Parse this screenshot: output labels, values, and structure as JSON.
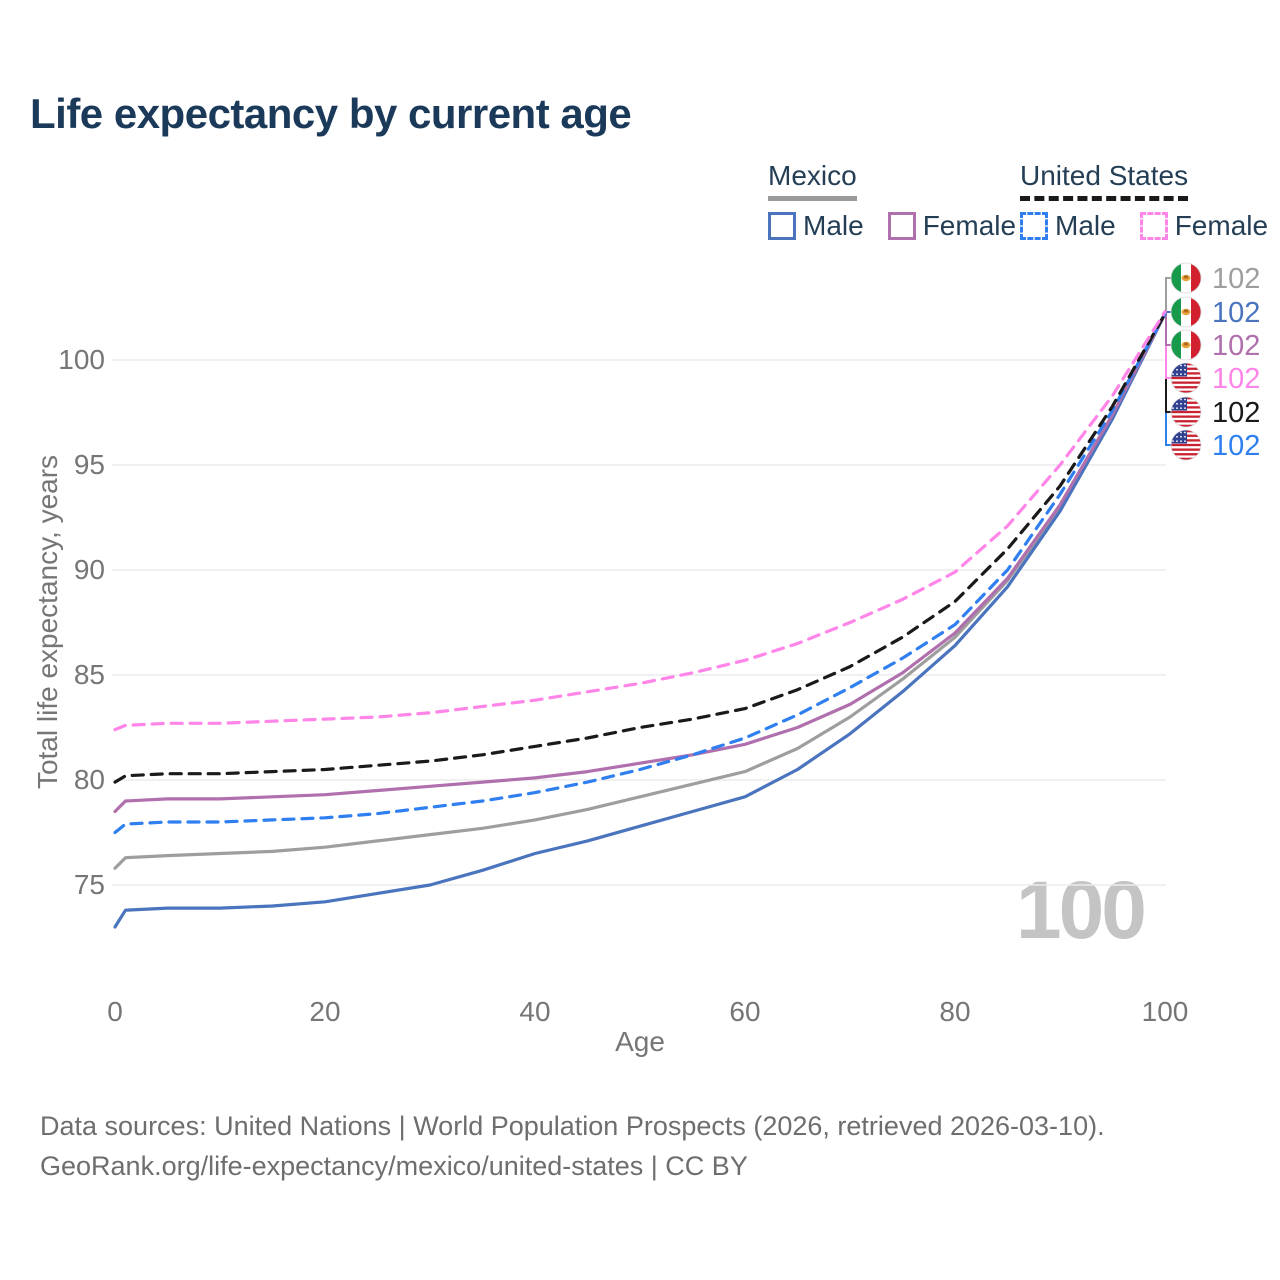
{
  "header": {
    "title": "Life expectancy by current age"
  },
  "legend": {
    "groups": [
      {
        "label": "Mexico",
        "line_style": "solid",
        "underline_color": "#9a9a9a",
        "items": [
          {
            "label": "Male",
            "color": "#4a74bd"
          },
          {
            "label": "Female",
            "color": "#b06fad"
          }
        ]
      },
      {
        "label": "United States",
        "line_style": "dashed",
        "underline_color": "#1a1a1a",
        "items": [
          {
            "label": "Male",
            "color": "#2f7ff0"
          },
          {
            "label": "Female",
            "color": "#ff85e8"
          }
        ]
      }
    ]
  },
  "chart_data": {
    "type": "line",
    "title": "Life expectancy by current age",
    "xlabel": "Age",
    "ylabel": "Total life expectancy, years",
    "x_ticks": [
      0,
      20,
      40,
      60,
      80,
      100
    ],
    "y_ticks": [
      75,
      80,
      85,
      90,
      95,
      100
    ],
    "xlim": [
      0,
      100
    ],
    "ylim": [
      72,
      103
    ],
    "grid": "horizontal-only",
    "legend_position": "top-right",
    "age_indicator": "100",
    "ages": [
      0,
      1,
      5,
      10,
      15,
      20,
      25,
      30,
      35,
      40,
      45,
      50,
      55,
      60,
      65,
      70,
      75,
      80,
      85,
      90,
      95,
      100
    ],
    "series": [
      {
        "name": "Mexico Both sexes",
        "country": "Mexico",
        "sex": "Both",
        "style": "solid",
        "color": "#9e9e9e",
        "flag": "mx",
        "slot": 0,
        "end_label": "102",
        "values": [
          75.8,
          76.3,
          76.4,
          76.5,
          76.6,
          76.8,
          77.1,
          77.4,
          77.7,
          78.1,
          78.6,
          79.2,
          79.8,
          80.4,
          81.5,
          83.0,
          84.8,
          86.8,
          89.5,
          93.0,
          97.3,
          102.2
        ]
      },
      {
        "name": "Mexico Male",
        "country": "Mexico",
        "sex": "Male",
        "style": "solid",
        "color": "#4a74bd",
        "flag": "mx",
        "slot": 1,
        "end_label": "102",
        "values": [
          73.0,
          73.8,
          73.9,
          73.9,
          74.0,
          74.2,
          74.6,
          75.0,
          75.7,
          76.5,
          77.1,
          77.8,
          78.5,
          79.2,
          80.5,
          82.2,
          84.2,
          86.4,
          89.2,
          92.8,
          97.2,
          102.2
        ]
      },
      {
        "name": "Mexico Female",
        "country": "Mexico",
        "sex": "Female",
        "style": "solid",
        "color": "#b06fad",
        "flag": "mx",
        "slot": 2,
        "end_label": "102",
        "values": [
          78.5,
          79.0,
          79.1,
          79.1,
          79.2,
          79.3,
          79.5,
          79.7,
          79.9,
          80.1,
          80.4,
          80.8,
          81.2,
          81.7,
          82.5,
          83.6,
          85.1,
          87.0,
          89.6,
          93.1,
          97.4,
          102.2
        ]
      },
      {
        "name": "United States Male",
        "country": "United States",
        "sex": "Male",
        "style": "dashed",
        "color": "#2f7ff0",
        "flag": "us",
        "slot": 5,
        "end_label": "102",
        "values": [
          77.5,
          77.9,
          78.0,
          78.0,
          78.1,
          78.2,
          78.4,
          78.7,
          79.0,
          79.4,
          79.9,
          80.5,
          81.2,
          82.0,
          83.1,
          84.4,
          85.8,
          87.4,
          90.0,
          93.6,
          97.6,
          102.2
        ]
      },
      {
        "name": "United States Both sexes",
        "country": "United States",
        "sex": "Both",
        "style": "dashed",
        "color": "#1a1a1a",
        "flag": "us",
        "slot": 4,
        "end_label": "102",
        "values": [
          79.9,
          80.2,
          80.3,
          80.3,
          80.4,
          80.5,
          80.7,
          80.9,
          81.2,
          81.6,
          82.0,
          82.5,
          82.9,
          83.4,
          84.3,
          85.4,
          86.8,
          88.5,
          91.0,
          94.0,
          97.8,
          102.2
        ]
      },
      {
        "name": "United States Female",
        "country": "United States",
        "sex": "Female",
        "style": "dashed",
        "color": "#ff85e8",
        "flag": "us",
        "slot": 3,
        "end_label": "102",
        "values": [
          82.4,
          82.6,
          82.7,
          82.7,
          82.8,
          82.9,
          83.0,
          83.2,
          83.5,
          83.8,
          84.2,
          84.6,
          85.1,
          85.7,
          86.5,
          87.5,
          88.6,
          89.9,
          92.1,
          95.0,
          98.3,
          102.3
        ]
      }
    ]
  },
  "footer": {
    "line1": "Data sources: United Nations | World Population Prospects (2026, retrieved 2026-03-10).",
    "line2": "GeoRank.org/life-expectancy/mexico/united-states | CC BY"
  }
}
